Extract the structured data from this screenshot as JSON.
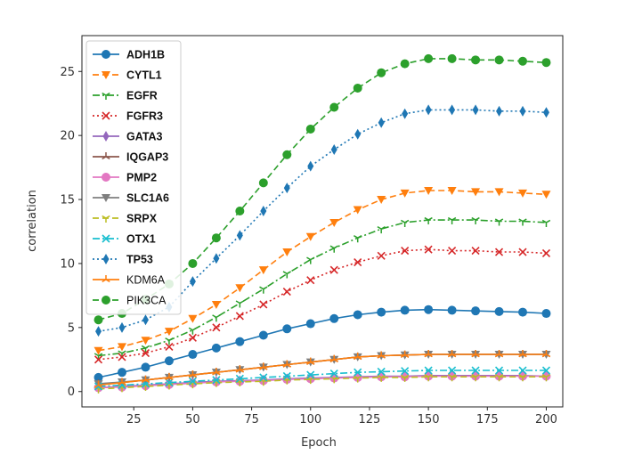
{
  "chart_data": {
    "type": "line",
    "xlabel": "Epoch",
    "ylabel": "correlation",
    "xlim": [
      3,
      207
    ],
    "ylim": [
      -1.2,
      27.8
    ],
    "xticks": [
      25,
      50,
      75,
      100,
      125,
      150,
      175,
      200
    ],
    "yticks": [
      0,
      5,
      10,
      15,
      20,
      25
    ],
    "grid": false,
    "legend_position": "top-left",
    "x": [
      10,
      20,
      30,
      40,
      50,
      60,
      70,
      80,
      90,
      100,
      110,
      120,
      130,
      140,
      150,
      160,
      170,
      180,
      190,
      200
    ],
    "series": [
      {
        "name": "ADH1B",
        "color": "#1f77b4",
        "dash": "solid",
        "marker": "circle",
        "legend_bold": true,
        "values": [
          1.1,
          1.5,
          1.9,
          2.4,
          2.9,
          3.4,
          3.9,
          4.4,
          4.9,
          5.3,
          5.7,
          6.0,
          6.2,
          6.35,
          6.4,
          6.35,
          6.3,
          6.25,
          6.2,
          6.1
        ]
      },
      {
        "name": "CYTL1",
        "color": "#ff7f0e",
        "dash": "dashed",
        "marker": "triangle-down",
        "legend_bold": true,
        "values": [
          3.2,
          3.5,
          4.0,
          4.7,
          5.7,
          6.8,
          8.1,
          9.5,
          10.9,
          12.1,
          13.2,
          14.2,
          15.0,
          15.5,
          15.7,
          15.7,
          15.6,
          15.6,
          15.5,
          15.4
        ]
      },
      {
        "name": "EGFR",
        "color": "#2ca02c",
        "dash": "dashdot",
        "marker": "tri-down",
        "legend_bold": true,
        "values": [
          2.8,
          3.0,
          3.4,
          4.0,
          4.8,
          5.8,
          6.9,
          8.0,
          9.2,
          10.3,
          11.2,
          12.0,
          12.7,
          13.2,
          13.4,
          13.4,
          13.4,
          13.3,
          13.3,
          13.2
        ]
      },
      {
        "name": "FGFR3",
        "color": "#d62728",
        "dash": "dotted",
        "marker": "x",
        "legend_bold": true,
        "values": [
          2.5,
          2.7,
          3.0,
          3.5,
          4.2,
          5.0,
          5.9,
          6.8,
          7.8,
          8.7,
          9.5,
          10.1,
          10.6,
          11.0,
          11.1,
          11.0,
          11.0,
          10.9,
          10.9,
          10.8
        ]
      },
      {
        "name": "GATA3",
        "color": "#9467bd",
        "dash": "solid",
        "marker": "thin-diamond",
        "legend_bold": true,
        "values": [
          0.3,
          0.4,
          0.5,
          0.6,
          0.7,
          0.8,
          0.85,
          0.9,
          1.0,
          1.05,
          1.1,
          1.15,
          1.2,
          1.2,
          1.25,
          1.25,
          1.25,
          1.25,
          1.25,
          1.2
        ]
      },
      {
        "name": "IQGAP3",
        "color": "#8c564b",
        "dash": "solid",
        "marker": "tri-up",
        "legend_bold": true,
        "values": [
          0.6,
          0.7,
          0.9,
          1.1,
          1.3,
          1.5,
          1.7,
          1.9,
          2.1,
          2.3,
          2.5,
          2.7,
          2.8,
          2.85,
          2.9,
          2.9,
          2.9,
          2.9,
          2.9,
          2.9
        ]
      },
      {
        "name": "PMP2",
        "color": "#e377c2",
        "dash": "solid",
        "marker": "circle",
        "legend_bold": true,
        "values": [
          0.3,
          0.35,
          0.45,
          0.55,
          0.65,
          0.75,
          0.8,
          0.85,
          0.95,
          1.0,
          1.05,
          1.1,
          1.15,
          1.15,
          1.2,
          1.2,
          1.2,
          1.2,
          1.2,
          1.2
        ]
      },
      {
        "name": "SLC1A6",
        "color": "#7f7f7f",
        "dash": "solid",
        "marker": "triangle-down",
        "legend_bold": true,
        "values": [
          0.6,
          0.75,
          0.9,
          1.1,
          1.3,
          1.5,
          1.7,
          1.9,
          2.1,
          2.3,
          2.5,
          2.7,
          2.8,
          2.85,
          2.9,
          2.9,
          2.9,
          2.9,
          2.9,
          2.9
        ]
      },
      {
        "name": "SRPX",
        "color": "#bcbd22",
        "dash": "dashed",
        "marker": "tri-down",
        "legend_bold": true,
        "values": [
          0.2,
          0.3,
          0.4,
          0.5,
          0.6,
          0.7,
          0.75,
          0.8,
          0.9,
          0.95,
          1.0,
          1.05,
          1.1,
          1.1,
          1.15,
          1.15,
          1.15,
          1.15,
          1.15,
          1.15
        ]
      },
      {
        "name": "OTX1",
        "color": "#17becf",
        "dash": "dashdot",
        "marker": "x",
        "legend_bold": true,
        "values": [
          0.4,
          0.5,
          0.6,
          0.7,
          0.8,
          0.9,
          1.0,
          1.1,
          1.2,
          1.3,
          1.4,
          1.5,
          1.55,
          1.6,
          1.65,
          1.65,
          1.65,
          1.65,
          1.65,
          1.65
        ]
      },
      {
        "name": "TP53",
        "color": "#1f77b4",
        "dash": "dotted",
        "marker": "thin-diamond",
        "legend_bold": true,
        "values": [
          4.7,
          5.0,
          5.6,
          6.6,
          8.6,
          10.4,
          12.2,
          14.1,
          15.9,
          17.6,
          18.9,
          20.1,
          21.0,
          21.7,
          22.0,
          22.0,
          22.0,
          21.9,
          21.9,
          21.8
        ]
      },
      {
        "name": "KDM6A",
        "color": "#ff7f0e",
        "dash": "solid",
        "marker": "tri-up",
        "legend_bold": false,
        "values": [
          0.5,
          0.7,
          0.9,
          1.1,
          1.3,
          1.5,
          1.7,
          1.9,
          2.1,
          2.3,
          2.5,
          2.7,
          2.8,
          2.85,
          2.9,
          2.9,
          2.9,
          2.9,
          2.9,
          2.9
        ]
      },
      {
        "name": "PIK3CA",
        "color": "#2ca02c",
        "dash": "dashed",
        "marker": "circle",
        "legend_bold": false,
        "values": [
          5.6,
          6.1,
          7.2,
          8.4,
          10.0,
          12.0,
          14.1,
          16.3,
          18.5,
          20.5,
          22.2,
          23.7,
          24.9,
          25.6,
          26.0,
          26.0,
          25.9,
          25.9,
          25.8,
          25.7
        ]
      }
    ]
  }
}
